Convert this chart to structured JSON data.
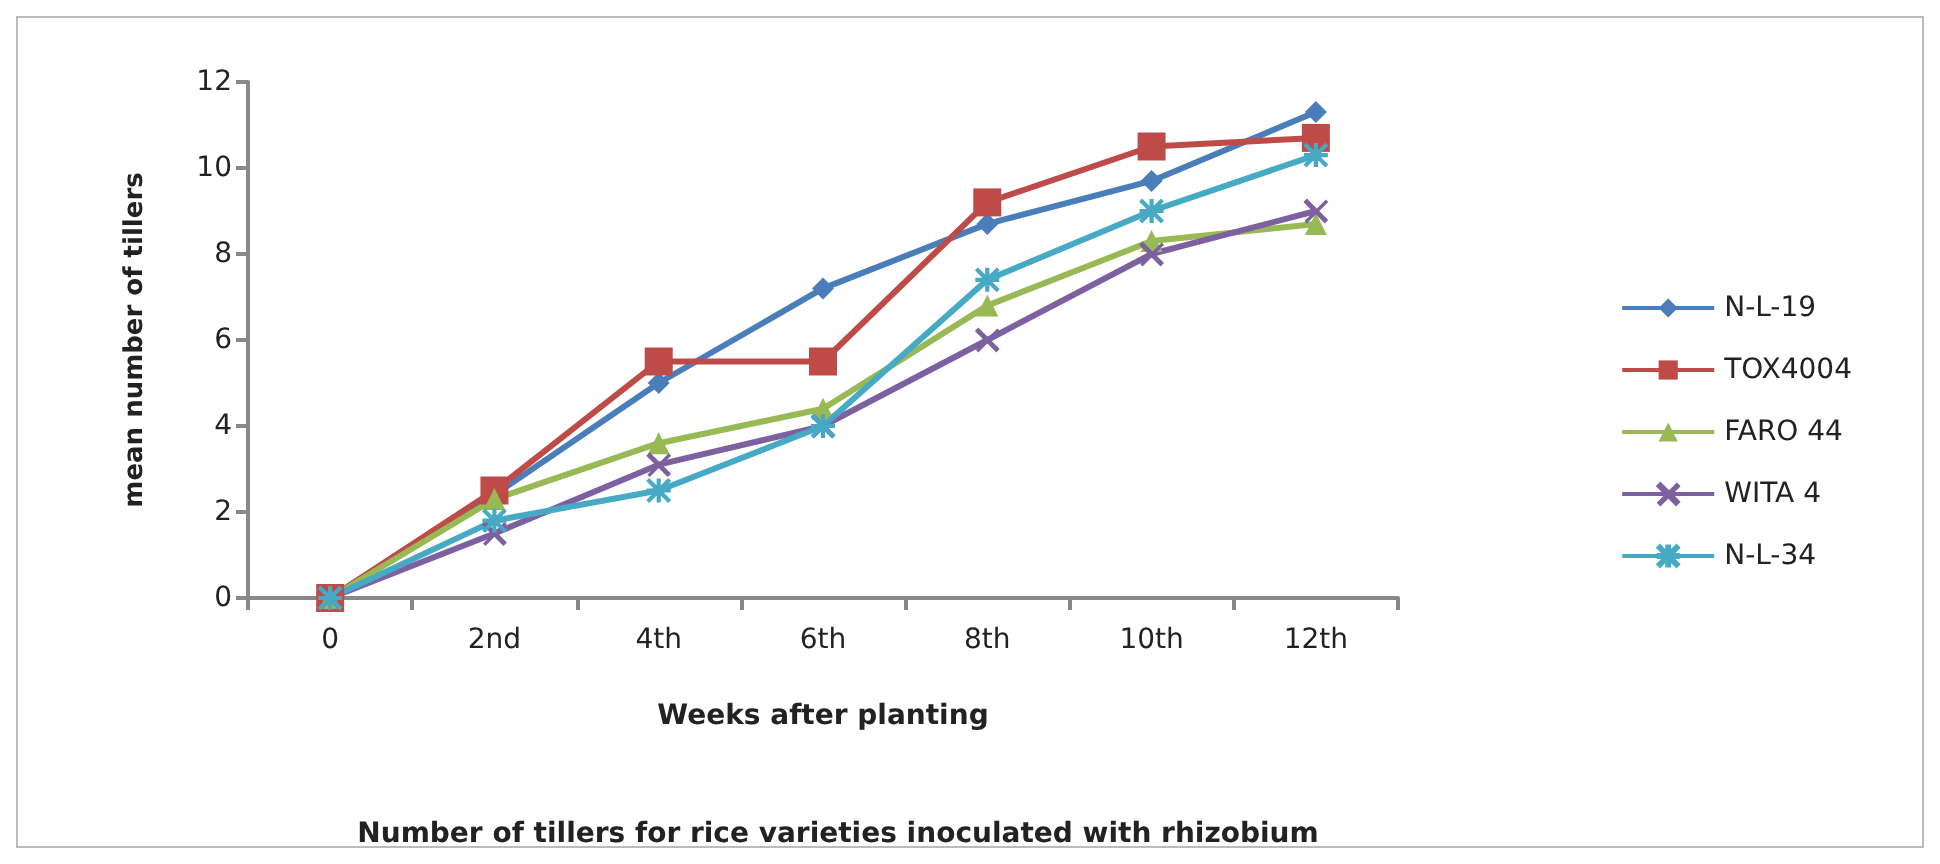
{
  "chart_data": {
    "type": "line",
    "title": "Number of tillers for rice varieties inoculated with rhizobium",
    "xlabel": "Weeks after planting",
    "ylabel": "mean number of tillers",
    "categories": [
      "0",
      "2nd",
      "4th",
      "6th",
      "8th",
      "10th",
      "12th"
    ],
    "series": [
      {
        "name": "N-L-19",
        "color": "#4a7ebb",
        "marker": "diamond",
        "values": [
          0,
          2.4,
          5.0,
          7.2,
          8.7,
          9.7,
          11.3
        ]
      },
      {
        "name": "TOX4004",
        "color": "#be4b48",
        "marker": "square",
        "values": [
          0,
          2.5,
          5.5,
          5.5,
          9.2,
          10.5,
          10.7
        ]
      },
      {
        "name": "FARO 44",
        "color": "#98b954",
        "marker": "triangle",
        "values": [
          0,
          2.3,
          3.6,
          4.4,
          6.8,
          8.3,
          8.7
        ]
      },
      {
        "name": "WITA 4",
        "color": "#7d60a0",
        "marker": "cross",
        "values": [
          0,
          1.5,
          3.1,
          4.0,
          6.0,
          8.0,
          9.0
        ]
      },
      {
        "name": "N-L-34",
        "color": "#46aac5",
        "marker": "star",
        "values": [
          0,
          1.8,
          2.5,
          4.0,
          7.4,
          9.0,
          10.3
        ]
      }
    ],
    "ylim": [
      0,
      12
    ],
    "yticks": [
      0,
      2,
      4,
      6,
      8,
      10,
      12
    ],
    "legend": "right"
  }
}
